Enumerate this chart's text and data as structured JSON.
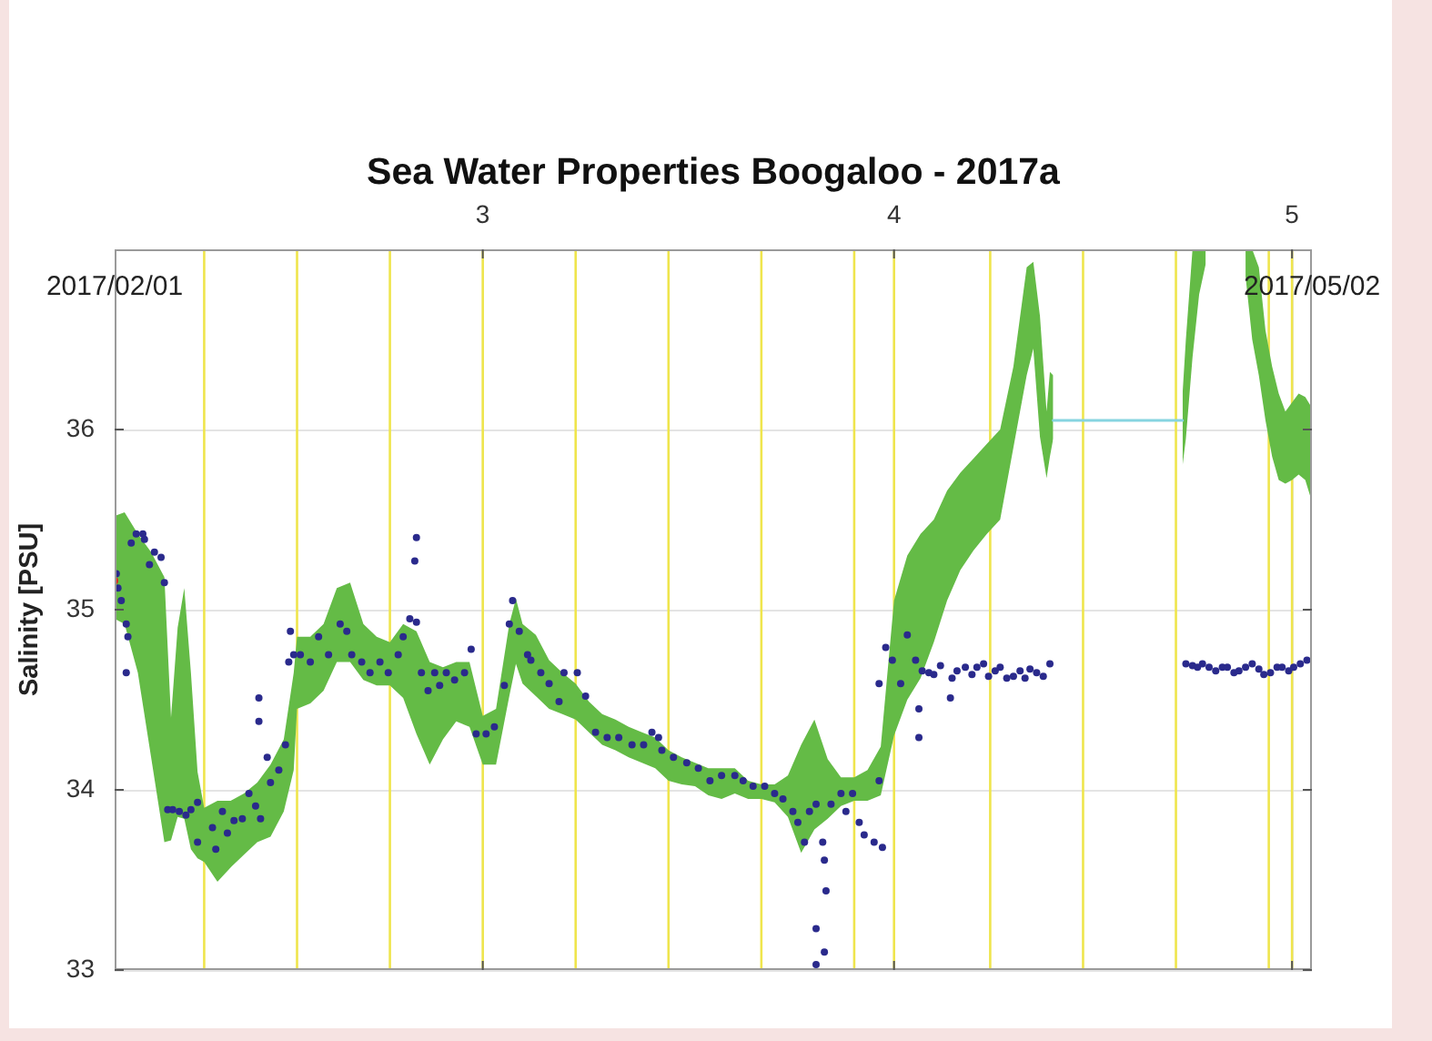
{
  "chart_data": {
    "type": "scatter",
    "title": "Sea Water Properties Boogaloo - 2017a",
    "ylabel": "Salinity [PSU]",
    "annotations": [
      "2017/02/01",
      "2017/05/02"
    ],
    "xlim": [
      "2017-02-01T06:00",
      "2017-05-02T12:00"
    ],
    "xticks": [
      {
        "value": "2017-03-01",
        "label": "3"
      },
      {
        "value": "2017-04-01",
        "label": "4"
      },
      {
        "value": "2017-05-01",
        "label": "5"
      }
    ],
    "ylim": [
      33,
      37
    ],
    "yticks": [
      33,
      34,
      35,
      36
    ],
    "grid": true,
    "ref_lines": [
      {
        "axis": "x",
        "value": "2017-02-08",
        "color": "#efe54c"
      },
      {
        "axis": "x",
        "value": "2017-02-15",
        "color": "#efe54c"
      },
      {
        "axis": "x",
        "value": "2017-02-22",
        "color": "#efe54c"
      },
      {
        "axis": "x",
        "value": "2017-03-01",
        "color": "#efe54c"
      },
      {
        "axis": "x",
        "value": "2017-03-08",
        "color": "#efe54c"
      },
      {
        "axis": "x",
        "value": "2017-03-15",
        "color": "#efe54c"
      },
      {
        "axis": "x",
        "value": "2017-03-22",
        "color": "#efe54c"
      },
      {
        "axis": "x",
        "value": "2017-03-29",
        "color": "#efe54c"
      },
      {
        "axis": "x",
        "value": "2017-04-01",
        "color": "#efe54c"
      },
      {
        "axis": "x",
        "value": "2017-04-08T06:00",
        "color": "#efe54c"
      },
      {
        "axis": "x",
        "value": "2017-04-15T06:00",
        "color": "#efe54c"
      },
      {
        "axis": "x",
        "value": "2017-04-22T06:00",
        "color": "#efe54c"
      },
      {
        "axis": "x",
        "value": "2017-04-29T06:00",
        "color": "#efe54c"
      },
      {
        "axis": "x",
        "value": "2017-05-01",
        "color": "#efe54c"
      }
    ],
    "series": [
      {
        "type": "line",
        "color": "#64bb46",
        "x": [
          "2017-02-01T06:00",
          "2017-02-02",
          "2017-02-03",
          "2017-02-04",
          "2017-02-05",
          "2017-02-05T12:00",
          "2017-02-06",
          "2017-02-06T12:00",
          "2017-02-07",
          "2017-02-07T12:00",
          "2017-02-08",
          "2017-02-09",
          "2017-02-10",
          "2017-02-11",
          "2017-02-12",
          "2017-02-13",
          "2017-02-14",
          "2017-02-14T18:00",
          "2017-02-15",
          "2017-02-16",
          "2017-02-17",
          "2017-02-18",
          "2017-02-19",
          "2017-02-20",
          "2017-02-21",
          "2017-02-22",
          "2017-02-23",
          "2017-02-24",
          "2017-02-25",
          "2017-02-26",
          "2017-02-27",
          "2017-02-28",
          "2017-03-01",
          "2017-03-02",
          "2017-03-03",
          "2017-03-03T12:00",
          "2017-03-04",
          "2017-03-05",
          "2017-03-06",
          "2017-03-07",
          "2017-03-08",
          "2017-03-09",
          "2017-03-10",
          "2017-03-11",
          "2017-03-12",
          "2017-03-13",
          "2017-03-14",
          "2017-03-15",
          "2017-03-16",
          "2017-03-17",
          "2017-03-18",
          "2017-03-19",
          "2017-03-20",
          "2017-03-21",
          "2017-03-22",
          "2017-03-23",
          "2017-03-24",
          "2017-03-25",
          "2017-03-26",
          "2017-03-27",
          "2017-03-28",
          "2017-03-29",
          "2017-03-30",
          "2017-03-31",
          "2017-04-01",
          "2017-04-02",
          "2017-04-03",
          "2017-04-04",
          "2017-04-05",
          "2017-04-06",
          "2017-04-07",
          "2017-04-08",
          "2017-04-09",
          "2017-04-10",
          "2017-04-11",
          "2017-04-11T12:00",
          "2017-04-12",
          "2017-04-12T12:00",
          "2017-04-12T18:00",
          "2017-04-13",
          "2017-04-18",
          "2017-04-22T18:00",
          "2017-04-23",
          "2017-04-23T12:00",
          "2017-04-24",
          "2017-04-24T12:00",
          "2017-04-25T12:00",
          "2017-04-27T12:00",
          "2017-04-28",
          "2017-04-28T12:00",
          "2017-04-29",
          "2017-04-29T12:00",
          "2017-04-30",
          "2017-04-30T12:00",
          "2017-05-01",
          "2017-05-01T12:00",
          "2017-05-02",
          "2017-05-02T12:00"
        ],
        "values": [
          null,
          null,
          null,
          null,
          null,
          null,
          null,
          null,
          null,
          null,
          null,
          null,
          null,
          null,
          null,
          null,
          null,
          null,
          null,
          null,
          null,
          null,
          null,
          null,
          null,
          null,
          null,
          null,
          null,
          null,
          null,
          null,
          null,
          null,
          null,
          null,
          null,
          null,
          null,
          null,
          null,
          null,
          null,
          null,
          null,
          null,
          null,
          null,
          null,
          null,
          null,
          null,
          null,
          null,
          null,
          null,
          null,
          null,
          null,
          null,
          null,
          null,
          null,
          null,
          null,
          null,
          null,
          null,
          null,
          null,
          null,
          null,
          null,
          null,
          null,
          null,
          null,
          null,
          null,
          null,
          null,
          null,
          null,
          null,
          null,
          null,
          null,
          null,
          null,
          null,
          null,
          null,
          null,
          null,
          null,
          null,
          null,
          null
        ],
        "lower": [
          34.95,
          34.92,
          34.65,
          34.18,
          33.71,
          33.72,
          33.85,
          33.84,
          33.67,
          33.62,
          33.6,
          33.49,
          33.57,
          33.64,
          33.71,
          33.74,
          33.88,
          34.11,
          34.45,
          34.48,
          34.55,
          34.71,
          34.71,
          34.61,
          34.58,
          34.58,
          34.51,
          34.31,
          34.14,
          34.28,
          34.38,
          34.35,
          34.14,
          34.14,
          34.52,
          34.7,
          34.59,
          34.52,
          34.45,
          34.42,
          34.39,
          34.32,
          34.25,
          34.22,
          34.18,
          34.15,
          34.12,
          34.05,
          34.03,
          34.02,
          33.97,
          33.95,
          33.98,
          33.95,
          33.95,
          33.93,
          33.85,
          33.65,
          33.78,
          33.84,
          33.91,
          33.94,
          33.94,
          33.97,
          34.3,
          34.5,
          34.62,
          34.82,
          35.05,
          35.22,
          35.33,
          35.42,
          35.5,
          35.9,
          36.3,
          36.45,
          35.96,
          35.73,
          35.85,
          35.95,
          null,
          35.8,
          35.95,
          36.4,
          36.75,
          36.92,
          null,
          36.85,
          36.5,
          36.3,
          36.05,
          35.85,
          35.72,
          35.7,
          35.72,
          35.75,
          35.72,
          35.6
        ],
        "upper": [
          35.52,
          35.54,
          35.42,
          35.32,
          35.18,
          34.4,
          34.9,
          35.12,
          34.65,
          34.1,
          33.9,
          33.94,
          33.94,
          33.98,
          34.04,
          34.14,
          34.28,
          34.65,
          34.85,
          34.85,
          34.92,
          35.12,
          35.15,
          34.92,
          34.85,
          34.82,
          34.92,
          34.88,
          34.71,
          34.68,
          34.71,
          34.71,
          34.41,
          34.45,
          34.92,
          35.06,
          34.92,
          34.86,
          34.72,
          34.65,
          34.59,
          34.49,
          34.42,
          34.39,
          34.35,
          34.32,
          34.29,
          34.22,
          34.18,
          34.15,
          34.12,
          34.12,
          34.12,
          34.05,
          34.03,
          34.03,
          34.08,
          34.25,
          34.39,
          34.17,
          34.07,
          34.07,
          34.11,
          34.24,
          35.05,
          35.3,
          35.42,
          35.5,
          35.66,
          35.76,
          35.84,
          35.92,
          36.0,
          36.35,
          36.9,
          36.93,
          36.63,
          36.1,
          36.32,
          36.3,
          null,
          36.2,
          36.5,
          37.0,
          37.0,
          37.0,
          null,
          37.0,
          37.0,
          36.9,
          36.55,
          36.35,
          36.2,
          36.1,
          36.15,
          36.2,
          36.18,
          36.12
        ]
      },
      {
        "type": "line",
        "color": "#86d4e0",
        "x": [
          "2017-04-13",
          "2017-04-22T18:00"
        ],
        "values": [
          36.05,
          36.05
        ]
      },
      {
        "type": "scatter",
        "color": "#2a2a8c",
        "marker": "circle",
        "x": [
          "2017-02-01T09:00",
          "2017-02-01T12:00",
          "2017-02-01T18:00",
          "2017-02-02T03:00",
          "2017-02-02T03:00",
          "2017-02-02T06:00",
          "2017-02-02T12:00",
          "2017-02-02T21:00",
          "2017-02-03T09:00",
          "2017-02-03T12:00",
          "2017-02-03T21:00",
          "2017-02-04T06:00",
          "2017-02-04T18:00",
          "2017-02-05T00:00",
          "2017-02-05T06:00",
          "2017-02-05T15:00",
          "2017-02-06T03:00",
          "2017-02-06T15:00",
          "2017-02-07T00:00",
          "2017-02-07T12:00",
          "2017-02-07T12:00",
          "2017-02-08T15:00",
          "2017-02-08T21:00",
          "2017-02-09T09:00",
          "2017-02-09T18:00",
          "2017-02-10T06:00",
          "2017-02-10T21:00",
          "2017-02-11T09:00",
          "2017-02-11T21:00",
          "2017-02-12T03:00",
          "2017-02-12T03:00",
          "2017-02-12T06:00",
          "2017-02-12T18:00",
          "2017-02-13T00:00",
          "2017-02-13T15:00",
          "2017-02-14T03:00",
          "2017-02-14T09:00",
          "2017-02-14T12:00",
          "2017-02-14T18:00",
          "2017-02-15T06:00",
          "2017-02-16T00:00",
          "2017-02-16T15:00",
          "2017-02-17T09:00",
          "2017-02-18T06:00",
          "2017-02-18T18:00",
          "2017-02-19T03:00",
          "2017-02-19T21:00",
          "2017-02-20T12:00",
          "2017-02-21T06:00",
          "2017-02-21T21:00",
          "2017-02-22T15:00",
          "2017-02-23T00:00",
          "2017-02-23T12:00",
          "2017-02-23T21:00",
          "2017-02-24T00:00",
          "2017-02-24T00:00",
          "2017-02-24T09:00",
          "2017-02-24T21:00",
          "2017-02-25T09:00",
          "2017-02-25T18:00",
          "2017-02-26T06:00",
          "2017-02-26T21:00",
          "2017-02-27T15:00",
          "2017-02-28T03:00",
          "2017-02-28T12:00",
          "2017-03-01T06:00",
          "2017-03-01T21:00",
          "2017-03-02T15:00",
          "2017-03-03T00:00",
          "2017-03-03T06:00",
          "2017-03-03T18:00",
          "2017-03-04T09:00",
          "2017-03-04T15:00",
          "2017-03-05T09:00",
          "2017-03-06T00:00",
          "2017-03-06T18:00",
          "2017-03-07T03:00",
          "2017-03-08T03:00",
          "2017-03-08T18:00",
          "2017-03-09T12:00",
          "2017-03-10T09:00",
          "2017-03-11T06:00",
          "2017-03-12T06:00",
          "2017-03-13T03:00",
          "2017-03-13T18:00",
          "2017-03-14T06:00",
          "2017-03-14T12:00",
          "2017-03-15T09:00",
          "2017-03-16T09:00",
          "2017-03-17T06:00",
          "2017-03-18T03:00",
          "2017-03-19T00:00",
          "2017-03-20T00:00",
          "2017-03-20T15:00",
          "2017-03-21T09:00",
          "2017-03-22T06:00",
          "2017-03-23T00:00",
          "2017-03-23T15:00",
          "2017-03-24T09:00",
          "2017-03-24T18:00",
          "2017-03-25T06:00",
          "2017-03-25T15:00",
          "2017-03-26T03:00",
          "2017-03-26T03:00",
          "2017-03-26T03:00",
          "2017-03-26T15:00",
          "2017-03-26T18:00",
          "2017-03-26T18:00",
          "2017-03-26T21:00",
          "2017-03-27T06:00",
          "2017-03-28T00:00",
          "2017-03-28T09:00",
          "2017-03-28T21:00",
          "2017-03-29T09:00",
          "2017-03-29T18:00",
          "2017-03-30T12:00",
          "2017-03-30T21:00",
          "2017-03-30T21:00",
          "2017-03-31T03:00",
          "2017-03-31T09:00",
          "2017-03-31T21:00",
          "2017-04-01T12:00",
          "2017-04-02T00:00",
          "2017-04-02T15:00",
          "2017-04-02T21:00",
          "2017-04-02T21:00",
          "2017-04-03T03:00",
          "2017-04-03T15:00",
          "2017-04-04T00:00",
          "2017-04-04T12:00",
          "2017-04-05T06:00",
          "2017-04-05T09:00",
          "2017-04-05T18:00",
          "2017-04-06T09:00",
          "2017-04-06T21:00",
          "2017-04-07T06:00",
          "2017-04-07T18:00",
          "2017-04-08T03:00",
          "2017-04-08T15:00",
          "2017-04-09T00:00",
          "2017-04-09T12:00",
          "2017-04-10T00:00",
          "2017-04-10T12:00",
          "2017-04-10T21:00",
          "2017-04-11T06:00",
          "2017-04-11T18:00",
          "2017-04-12T06:00",
          "2017-04-12T18:00",
          "2017-04-23T00:00",
          "2017-04-23T12:00",
          "2017-04-23T21:00",
          "2017-04-24T06:00",
          "2017-04-24T18:00",
          "2017-04-25T06:00",
          "2017-04-25T18:00",
          "2017-04-26T03:00",
          "2017-04-26T15:00",
          "2017-04-27T00:00",
          "2017-04-27T12:00",
          "2017-04-28T00:00",
          "2017-04-28T12:00",
          "2017-04-28T21:00",
          "2017-04-29T09:00",
          "2017-04-29T21:00",
          "2017-04-30T06:00",
          "2017-04-30T18:00",
          "2017-05-01T03:00",
          "2017-05-01T15:00",
          "2017-05-02T03:00"
        ],
        "values": [
          35.2,
          35.12,
          35.05,
          34.92,
          34.65,
          34.85,
          35.37,
          35.42,
          35.42,
          35.39,
          35.25,
          35.32,
          35.29,
          35.15,
          33.89,
          33.89,
          33.88,
          33.86,
          33.89,
          33.93,
          33.71,
          33.79,
          33.67,
          33.88,
          33.76,
          33.83,
          33.84,
          33.98,
          33.91,
          34.38,
          34.51,
          33.84,
          34.18,
          34.04,
          34.11,
          34.25,
          34.71,
          34.88,
          34.75,
          34.75,
          34.71,
          34.85,
          34.75,
          34.92,
          34.88,
          34.75,
          34.71,
          34.65,
          34.71,
          34.65,
          34.75,
          34.85,
          34.95,
          35.27,
          34.93,
          35.4,
          34.65,
          34.55,
          34.65,
          34.58,
          34.65,
          34.61,
          34.65,
          34.78,
          34.31,
          34.31,
          34.35,
          34.58,
          34.92,
          35.05,
          34.88,
          34.75,
          34.72,
          34.65,
          34.59,
          34.49,
          34.65,
          34.65,
          34.52,
          34.32,
          34.29,
          34.29,
          34.25,
          34.25,
          34.32,
          34.29,
          34.22,
          34.18,
          34.15,
          34.12,
          34.05,
          34.08,
          34.08,
          34.05,
          34.02,
          34.02,
          33.98,
          33.95,
          33.88,
          33.82,
          33.71,
          33.88,
          33.92,
          33.23,
          33.03,
          33.71,
          33.61,
          33.1,
          33.44,
          33.92,
          33.98,
          33.88,
          33.98,
          33.82,
          33.75,
          33.71,
          34.05,
          34.59,
          33.68,
          34.79,
          34.72,
          34.59,
          34.86,
          34.72,
          34.45,
          34.29,
          34.66,
          34.65,
          34.64,
          34.69,
          34.51,
          34.62,
          34.66,
          34.68,
          34.64,
          34.68,
          34.7,
          34.63,
          34.66,
          34.68,
          34.62,
          34.63,
          34.66,
          34.62,
          34.67,
          34.65,
          34.63,
          34.7,
          34.7,
          34.69,
          34.68,
          34.7,
          34.68,
          34.66,
          34.68,
          34.68,
          34.65,
          34.66,
          34.68,
          34.7,
          34.67,
          34.64,
          34.65,
          34.68,
          34.68,
          34.66,
          34.68,
          34.7,
          34.72
        ]
      },
      {
        "type": "scatter",
        "color": "#e02a1e",
        "marker": "circle",
        "x": [
          "2017-02-01T06:00"
        ],
        "values": [
          35.16
        ]
      }
    ]
  }
}
